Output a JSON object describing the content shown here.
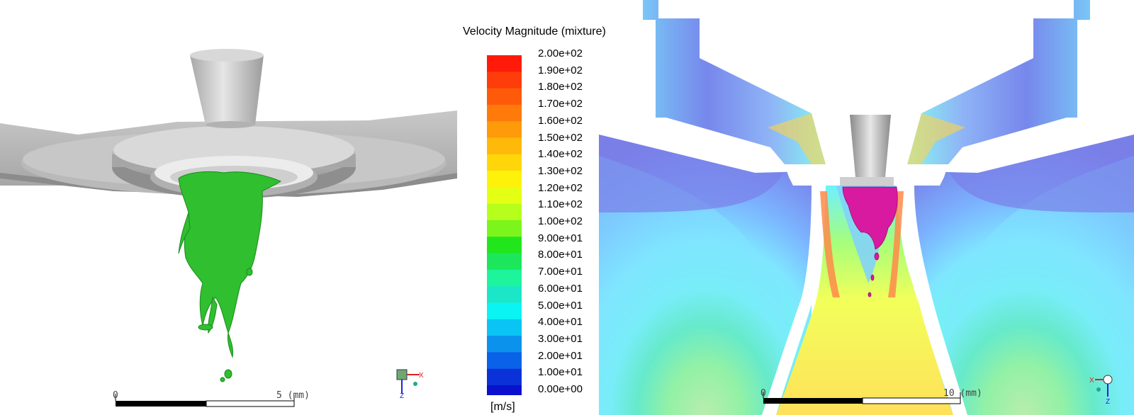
{
  "legend": {
    "title": "Velocity Magnitude (mixture)",
    "unit": "[m/s]",
    "labels": [
      "2.00e+02",
      "1.90e+02",
      "1.80e+02",
      "1.70e+02",
      "1.60e+02",
      "1.50e+02",
      "1.40e+02",
      "1.30e+02",
      "1.20e+02",
      "1.10e+02",
      "1.00e+02",
      "9.00e+01",
      "8.00e+01",
      "7.00e+01",
      "6.00e+01",
      "5.00e+01",
      "4.00e+01",
      "3.00e+01",
      "2.00e+01",
      "1.00e+01",
      "0.00e+00"
    ],
    "colors": [
      "#ff1a0a",
      "#ff3d0a",
      "#ff5a0a",
      "#ff7a0a",
      "#ff9a0a",
      "#ffb90a",
      "#ffd60a",
      "#fff20a",
      "#e4ff14",
      "#b6ff1c",
      "#7cf51c",
      "#22e61c",
      "#1ce65c",
      "#1cf59c",
      "#1ce6c8",
      "#0af4f4",
      "#0ac4f4",
      "#0a92ec",
      "#0a62e8",
      "#0a32d8",
      "#0a10cc"
    ]
  },
  "scale_left": {
    "start": "0",
    "end": "5 (mm)"
  },
  "scale_right": {
    "start": "0",
    "end": "10 (mm)"
  },
  "axes": {
    "x": "X",
    "z": "Z"
  }
}
